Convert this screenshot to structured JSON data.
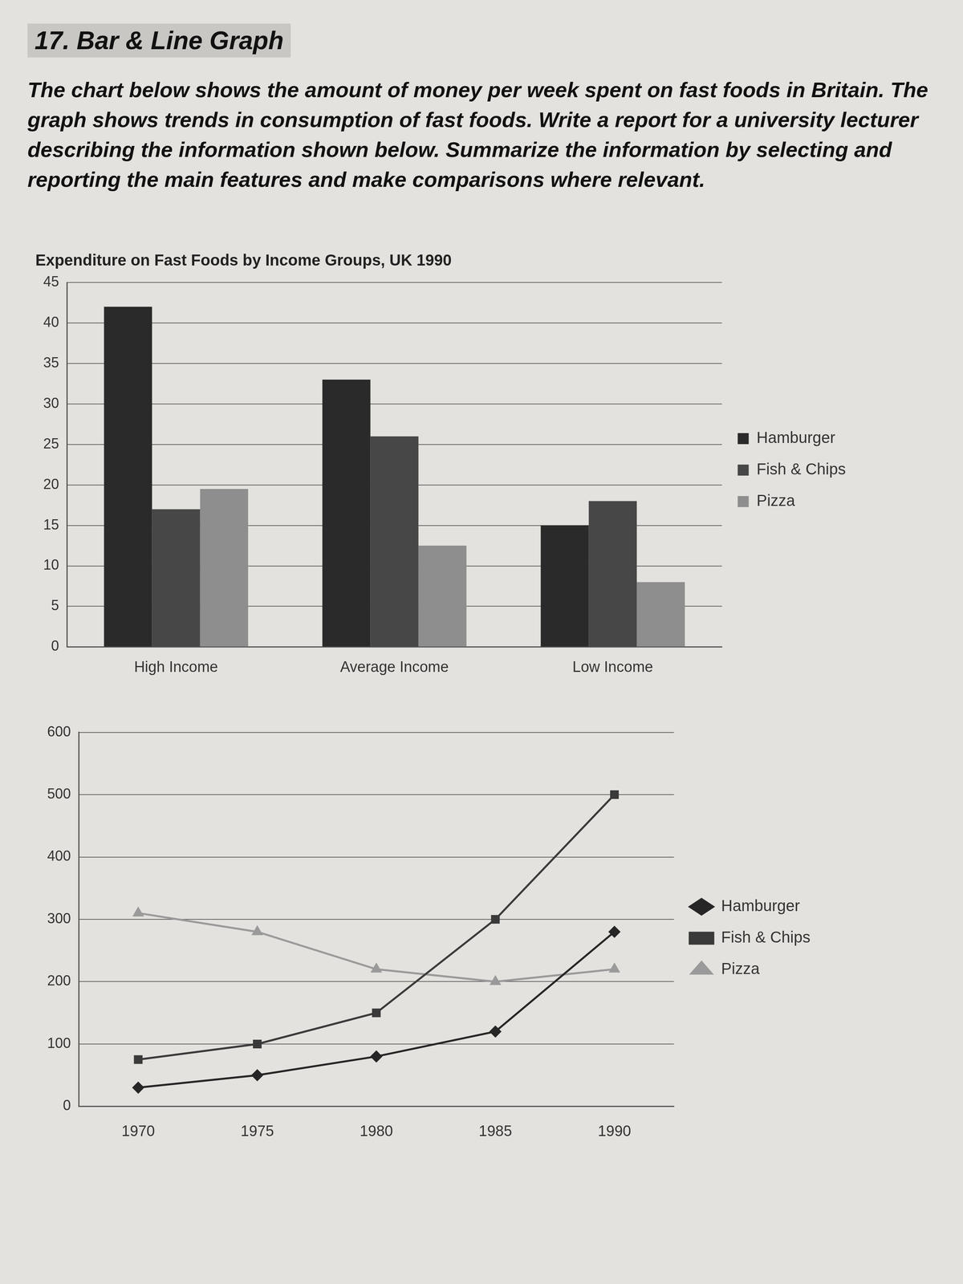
{
  "heading": "17. Bar & Line Graph",
  "prompt": "The chart below shows the amount of money per week spent on fast foods in Britain. The graph shows trends in consumption of fast foods. Write a report for a university lecturer describing the information shown below. Summarize the information by selecting and reporting the main features and make comparisons where relevant.",
  "chart_data": [
    {
      "type": "bar",
      "title": "Expenditure on Fast Foods by Income Groups, UK 1990",
      "categories": [
        "High Income",
        "Average Income",
        "Low Income"
      ],
      "series": [
        {
          "name": "Hamburger",
          "color": "#2a2a2a",
          "values": [
            42,
            33,
            15
          ]
        },
        {
          "name": "Fish & Chips",
          "color": "#474747",
          "values": [
            17,
            26,
            18
          ]
        },
        {
          "name": "Pizza",
          "color": "#8e8e8e",
          "values": [
            19.5,
            12.5,
            8
          ]
        }
      ],
      "ylim": [
        0,
        45
      ],
      "yticks": [
        0,
        5,
        10,
        15,
        20,
        25,
        30,
        35,
        40,
        45
      ],
      "grid": true,
      "legend": "right"
    },
    {
      "type": "line",
      "categories": [
        "1970",
        "1975",
        "1980",
        "1985",
        "1990"
      ],
      "series": [
        {
          "name": "Hamburger",
          "color": "#262626",
          "marker": "diamond",
          "values": [
            30,
            50,
            80,
            120,
            280
          ]
        },
        {
          "name": "Fish & Chips",
          "color": "#3a3a3a",
          "marker": "square",
          "values": [
            75,
            100,
            150,
            300,
            500
          ]
        },
        {
          "name": "Pizza",
          "color": "#9a9a9a",
          "marker": "triangle",
          "values": [
            310,
            280,
            220,
            200,
            220
          ]
        }
      ],
      "ylim": [
        0,
        600
      ],
      "yticks": [
        0,
        100,
        200,
        300,
        400,
        500,
        600
      ],
      "grid": true,
      "legend": "right"
    }
  ]
}
